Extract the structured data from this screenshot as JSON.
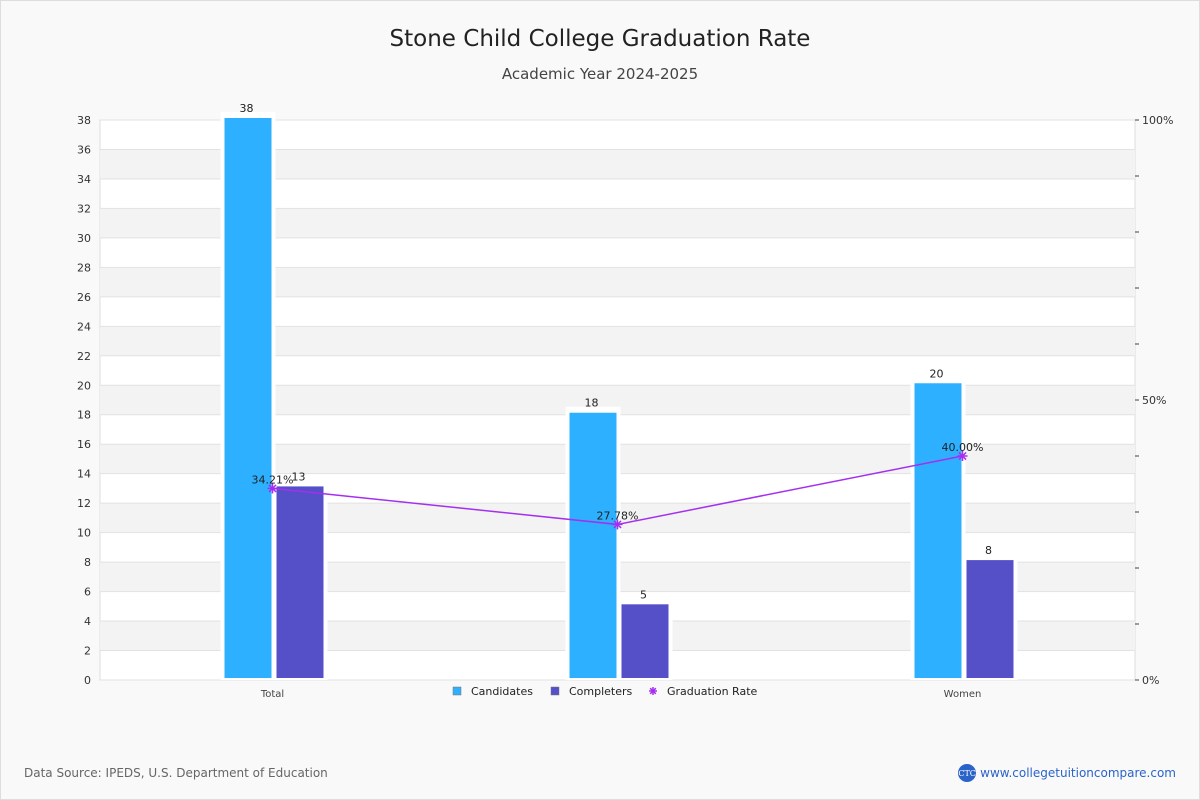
{
  "chart_data": {
    "type": "bar",
    "title": "Stone Child College Graduation Rate",
    "subtitle": "Academic Year 2024-2025",
    "categories": [
      "Total",
      "",
      "Women"
    ],
    "series": [
      {
        "name": "Candidates",
        "type": "bar",
        "color": "#2db0ff",
        "values": [
          38,
          18,
          20
        ]
      },
      {
        "name": "Completers",
        "type": "bar",
        "color": "#554fc8",
        "values": [
          13,
          5,
          8
        ]
      },
      {
        "name": "Graduation Rate",
        "type": "line",
        "axis": "right",
        "color": "#a42ff0",
        "values": [
          34.21,
          27.78,
          40.0
        ],
        "labels": [
          "34.21%",
          "27.78%",
          "40.00%"
        ]
      }
    ],
    "ylim": [
      0,
      38
    ],
    "yticks": [
      0,
      2,
      4,
      6,
      8,
      10,
      12,
      14,
      16,
      18,
      20,
      22,
      24,
      26,
      28,
      30,
      32,
      34,
      36,
      38
    ],
    "y2lim": [
      0,
      100
    ],
    "y2ticks": [
      "0%",
      "50%",
      "100%"
    ],
    "grid": true,
    "legend": "bottom-center"
  },
  "footer": {
    "source": "Data Source: IPEDS, U.S. Department of Education",
    "logo_text": "CTC",
    "site": "www.collegetuitioncompare.com"
  }
}
